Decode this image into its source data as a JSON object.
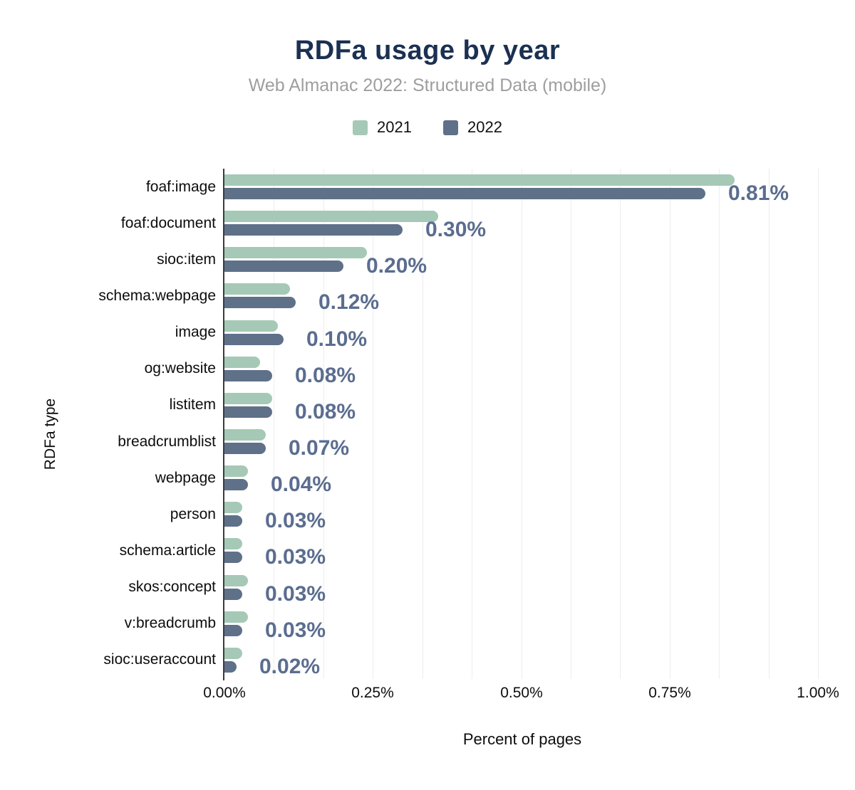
{
  "header": {
    "title": "RDFa usage by year",
    "subtitle": "Web Almanac 2022: Structured Data (mobile)"
  },
  "colors": {
    "title": "#1b3052",
    "subtitle": "#9e9e9e",
    "series_2021": "#a5c9b6",
    "series_2022": "#5f7089",
    "value_label": "#5b6d8f",
    "axis_line": "#3a3b40",
    "gridline": "#ededf1",
    "background": "#ffffff"
  },
  "chart_data": {
    "type": "bar",
    "orientation": "horizontal",
    "title": "RDFa usage by year",
    "subtitle": "Web Almanac 2022: Structured Data (mobile)",
    "xlabel": "Percent of pages",
    "ylabel": "RDFa type",
    "xlim": [
      0,
      1.0
    ],
    "x_ticks": [
      "0.00%",
      "0.25%",
      "0.50%",
      "0.75%",
      "1.00%"
    ],
    "x_tick_values": [
      0,
      0.25,
      0.5,
      0.75,
      1.0
    ],
    "grid": "vertical minor gridlines every 0.0833%",
    "legend_position": "top-center",
    "categories": [
      "foaf:image",
      "foaf:document",
      "sioc:item",
      "schema:webpage",
      "image",
      "og:website",
      "listitem",
      "breadcrumblist",
      "webpage",
      "person",
      "schema:article",
      "skos:concept",
      "v:breadcrumb",
      "sioc:useraccount"
    ],
    "series": [
      {
        "name": "2021",
        "color": "#a5c9b6",
        "values": [
          0.86,
          0.36,
          0.24,
          0.11,
          0.09,
          0.06,
          0.08,
          0.07,
          0.04,
          0.03,
          0.03,
          0.04,
          0.04,
          0.03
        ]
      },
      {
        "name": "2022",
        "color": "#5f7089",
        "values": [
          0.81,
          0.3,
          0.2,
          0.12,
          0.1,
          0.08,
          0.08,
          0.07,
          0.04,
          0.03,
          0.03,
          0.03,
          0.03,
          0.02
        ]
      }
    ],
    "data_labels": {
      "series": "2022",
      "texts": [
        "0.81%",
        "0.30%",
        "0.20%",
        "0.12%",
        "0.10%",
        "0.08%",
        "0.08%",
        "0.07%",
        "0.04%",
        "0.03%",
        "0.03%",
        "0.03%",
        "0.03%",
        "0.02%"
      ]
    }
  }
}
